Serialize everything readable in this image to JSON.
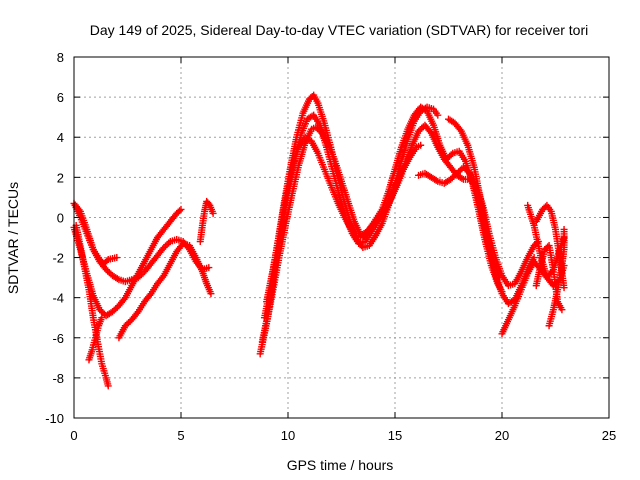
{
  "chart_data": {
    "type": "scatter",
    "title": "Day 149 of 2025, Sidereal Day-to-day VTEC variation (SDTVAR) for receiver tori",
    "xlabel": "GPS time / hours",
    "ylabel": "SDTVAR / TECUs",
    "xlim": [
      0,
      25
    ],
    "ylim": [
      -10,
      8
    ],
    "xticks": [
      "0",
      "5",
      "10",
      "15",
      "20",
      "25"
    ],
    "yticks": [
      "-10",
      "-8",
      "-6",
      "-4",
      "-2",
      "0",
      "2",
      "4",
      "6",
      "8"
    ],
    "xtick_values": [
      0,
      5,
      10,
      15,
      20,
      25
    ],
    "ytick_values": [
      -10,
      -8,
      -6,
      -4,
      -2,
      0,
      2,
      4,
      6,
      8
    ],
    "grid": true,
    "marker": "plus",
    "color": "#ff0000",
    "series": [
      {
        "values": [
          [
            0.0,
            0.7
          ],
          [
            0.3,
            0.3
          ],
          [
            0.6,
            -0.6
          ],
          [
            0.9,
            -1.6
          ],
          [
            1.2,
            -2.2
          ],
          [
            1.5,
            -2.6
          ],
          [
            1.8,
            -2.9
          ],
          [
            2.1,
            -3.1
          ],
          [
            2.4,
            -3.2
          ],
          [
            2.7,
            -3.1
          ],
          [
            3.0,
            -3.0
          ],
          [
            3.3,
            -2.7
          ],
          [
            3.6,
            -2.3
          ],
          [
            3.9,
            -1.9
          ],
          [
            4.2,
            -1.5
          ],
          [
            4.5,
            -1.2
          ],
          [
            4.8,
            -1.1
          ],
          [
            5.1,
            -1.2
          ],
          [
            5.4,
            -1.6
          ],
          [
            5.7,
            -2.2
          ],
          [
            6.0,
            -2.6
          ],
          [
            6.3,
            -2.5
          ]
        ]
      },
      {
        "values": [
          [
            0.05,
            0.6
          ],
          [
            0.3,
            0.0
          ],
          [
            0.6,
            -0.8
          ],
          [
            0.9,
            -1.6
          ],
          [
            1.2,
            -2.1
          ],
          [
            1.4,
            -2.3
          ],
          [
            1.6,
            -2.1
          ],
          [
            2.0,
            -2.0
          ]
        ]
      },
      {
        "values": [
          [
            0.0,
            -0.5
          ],
          [
            0.3,
            -1.6
          ],
          [
            0.6,
            -2.8
          ],
          [
            0.9,
            -3.9
          ],
          [
            1.2,
            -4.6
          ],
          [
            1.5,
            -4.9
          ],
          [
            1.8,
            -4.7
          ],
          [
            2.1,
            -4.4
          ],
          [
            2.4,
            -4.0
          ],
          [
            2.7,
            -3.4
          ],
          [
            3.0,
            -2.8
          ],
          [
            3.3,
            -2.2
          ],
          [
            3.6,
            -1.6
          ],
          [
            3.9,
            -1.0
          ],
          [
            4.2,
            -0.6
          ],
          [
            4.5,
            -0.2
          ],
          [
            4.8,
            0.2
          ],
          [
            5.0,
            0.4
          ]
        ]
      },
      {
        "values": [
          [
            0.1,
            -0.4
          ],
          [
            0.4,
            -2.0
          ],
          [
            0.7,
            -3.6
          ],
          [
            0.9,
            -5.0
          ],
          [
            1.1,
            -6.2
          ],
          [
            1.3,
            -7.3
          ],
          [
            1.5,
            -8.0
          ],
          [
            1.6,
            -8.4
          ]
        ]
      },
      {
        "values": [
          [
            0.7,
            -7.1
          ],
          [
            0.85,
            -6.6
          ],
          [
            1.0,
            -6.0
          ],
          [
            1.15,
            -5.4
          ],
          [
            1.3,
            -5.0
          ]
        ]
      },
      {
        "values": [
          [
            2.1,
            -6.0
          ],
          [
            2.4,
            -5.4
          ],
          [
            2.7,
            -5.1
          ],
          [
            3.0,
            -4.7
          ],
          [
            3.3,
            -4.2
          ],
          [
            3.6,
            -3.8
          ],
          [
            3.9,
            -3.3
          ],
          [
            4.2,
            -2.9
          ],
          [
            4.5,
            -2.3
          ],
          [
            4.8,
            -1.7
          ],
          [
            5.1,
            -1.3
          ],
          [
            5.4,
            -1.4
          ],
          [
            5.7,
            -2.0
          ],
          [
            6.0,
            -2.7
          ],
          [
            6.2,
            -3.3
          ],
          [
            6.4,
            -3.8
          ]
        ]
      },
      {
        "values": [
          [
            5.9,
            -1.2
          ],
          [
            6.0,
            -0.4
          ],
          [
            6.1,
            0.3
          ],
          [
            6.2,
            0.8
          ],
          [
            6.35,
            0.6
          ],
          [
            6.5,
            0.2
          ]
        ]
      },
      {
        "values": [
          [
            8.7,
            -6.8
          ],
          [
            9.0,
            -5.3
          ],
          [
            9.3,
            -3.6
          ],
          [
            9.6,
            -1.9
          ],
          [
            9.9,
            -0.3
          ],
          [
            10.2,
            1.2
          ],
          [
            10.5,
            2.6
          ],
          [
            10.8,
            3.7
          ],
          [
            11.1,
            4.4
          ],
          [
            11.3,
            4.5
          ],
          [
            11.6,
            4.2
          ],
          [
            11.9,
            3.6
          ],
          [
            12.2,
            2.8
          ],
          [
            12.5,
            1.8
          ],
          [
            12.8,
            0.8
          ],
          [
            13.1,
            -0.2
          ],
          [
            13.4,
            -0.9
          ],
          [
            13.7,
            -0.7
          ],
          [
            14.0,
            -0.3
          ],
          [
            14.3,
            0.0
          ],
          [
            14.6,
            0.4
          ],
          [
            14.9,
            1.2
          ],
          [
            15.2,
            2.0
          ],
          [
            15.5,
            2.8
          ],
          [
            15.8,
            3.6
          ],
          [
            16.1,
            4.3
          ],
          [
            16.4,
            4.6
          ],
          [
            16.7,
            4.2
          ],
          [
            17.0,
            3.5
          ],
          [
            17.3,
            2.9
          ],
          [
            17.6,
            2.5
          ],
          [
            17.9,
            2.1
          ],
          [
            18.2,
            1.9
          ],
          [
            18.5,
            1.9
          ],
          [
            18.8,
            1.6
          ],
          [
            19.1,
            0.6
          ],
          [
            19.4,
            -0.8
          ],
          [
            19.7,
            -2.0
          ],
          [
            20.0,
            -2.9
          ],
          [
            20.3,
            -3.4
          ],
          [
            20.6,
            -3.3
          ],
          [
            20.9,
            -2.7
          ],
          [
            21.2,
            -2.0
          ],
          [
            21.5,
            -1.4
          ],
          [
            21.7,
            -1.2
          ]
        ]
      },
      {
        "values": [
          [
            8.9,
            -5.0
          ],
          [
            9.2,
            -3.4
          ],
          [
            9.5,
            -1.4
          ],
          [
            9.8,
            0.6
          ],
          [
            10.1,
            2.4
          ],
          [
            10.4,
            4.0
          ],
          [
            10.7,
            5.2
          ],
          [
            11.0,
            5.9
          ],
          [
            11.2,
            6.1
          ],
          [
            11.4,
            5.7
          ],
          [
            11.7,
            4.7
          ],
          [
            12.0,
            3.5
          ],
          [
            12.3,
            2.2
          ],
          [
            12.6,
            0.9
          ],
          [
            12.9,
            -0.2
          ],
          [
            13.2,
            -0.9
          ],
          [
            13.5,
            -1.0
          ],
          [
            13.8,
            -0.6
          ],
          [
            14.1,
            -0.1
          ],
          [
            14.4,
            0.4
          ],
          [
            14.7,
            1.3
          ],
          [
            15.0,
            2.4
          ],
          [
            15.3,
            3.5
          ],
          [
            15.6,
            4.4
          ],
          [
            15.9,
            5.1
          ],
          [
            16.2,
            5.5
          ],
          [
            16.5,
            5.3
          ],
          [
            16.8,
            4.6
          ],
          [
            17.1,
            3.6
          ],
          [
            17.4,
            2.9
          ],
          [
            17.7,
            3.2
          ],
          [
            18.0,
            3.3
          ],
          [
            18.3,
            2.8
          ],
          [
            18.6,
            1.8
          ],
          [
            18.9,
            0.4
          ],
          [
            19.2,
            -1.1
          ],
          [
            19.5,
            -2.4
          ],
          [
            19.8,
            -3.3
          ],
          [
            20.0,
            -3.7
          ]
        ]
      },
      {
        "values": [
          [
            8.8,
            -6.2
          ],
          [
            9.1,
            -4.6
          ],
          [
            9.4,
            -2.6
          ],
          [
            9.7,
            -0.6
          ],
          [
            10.0,
            1.2
          ],
          [
            10.3,
            2.8
          ],
          [
            10.6,
            4.1
          ],
          [
            10.9,
            4.9
          ],
          [
            11.2,
            5.1
          ],
          [
            11.5,
            4.6
          ],
          [
            11.8,
            3.5
          ],
          [
            12.1,
            2.3
          ],
          [
            12.4,
            1.1
          ],
          [
            12.7,
            0.0
          ],
          [
            13.0,
            -0.8
          ],
          [
            13.3,
            -1.3
          ],
          [
            13.6,
            -1.2
          ],
          [
            13.9,
            -0.7
          ],
          [
            14.2,
            -0.2
          ],
          [
            14.5,
            0.3
          ],
          [
            14.8,
            0.9
          ],
          [
            15.1,
            1.6
          ],
          [
            15.4,
            2.4
          ],
          [
            15.7,
            3.0
          ],
          [
            16.0,
            3.5
          ],
          [
            16.2,
            3.6
          ]
        ]
      },
      {
        "values": [
          [
            9.0,
            -4.2
          ],
          [
            9.3,
            -2.6
          ],
          [
            9.6,
            -0.8
          ],
          [
            9.9,
            1.0
          ],
          [
            10.2,
            2.5
          ],
          [
            10.5,
            3.5
          ],
          [
            10.8,
            4.0
          ],
          [
            11.1,
            3.8
          ],
          [
            11.4,
            3.2
          ],
          [
            11.7,
            2.4
          ],
          [
            12.0,
            1.6
          ],
          [
            12.3,
            0.8
          ],
          [
            12.6,
            0.1
          ],
          [
            12.9,
            -0.5
          ],
          [
            13.2,
            -1.1
          ],
          [
            13.5,
            -1.5
          ],
          [
            13.8,
            -1.4
          ],
          [
            14.1,
            -0.9
          ],
          [
            14.4,
            -0.3
          ],
          [
            14.7,
            0.6
          ],
          [
            15.0,
            1.6
          ],
          [
            15.3,
            2.8
          ],
          [
            15.6,
            3.9
          ],
          [
            15.9,
            4.8
          ],
          [
            16.2,
            5.3
          ],
          [
            16.5,
            5.5
          ],
          [
            16.8,
            5.4
          ],
          [
            17.0,
            5.1
          ]
        ]
      },
      {
        "values": [
          [
            16.1,
            2.1
          ],
          [
            16.4,
            2.2
          ],
          [
            16.7,
            2.0
          ],
          [
            17.0,
            1.8
          ],
          [
            17.3,
            1.7
          ],
          [
            17.6,
            1.9
          ],
          [
            17.9,
            2.2
          ],
          [
            18.2,
            2.5
          ],
          [
            18.5,
            2.2
          ],
          [
            18.8,
            1.2
          ],
          [
            19.1,
            -0.2
          ],
          [
            19.4,
            -1.6
          ],
          [
            19.7,
            -2.9
          ],
          [
            20.0,
            -3.8
          ],
          [
            20.3,
            -4.3
          ],
          [
            20.6,
            -4.1
          ],
          [
            20.9,
            -3.4
          ],
          [
            21.2,
            -2.6
          ],
          [
            21.5,
            -2.0
          ]
        ]
      },
      {
        "values": [
          [
            17.5,
            4.9
          ],
          [
            17.8,
            4.7
          ],
          [
            18.1,
            4.3
          ],
          [
            18.4,
            3.6
          ],
          [
            18.7,
            2.5
          ],
          [
            19.0,
            0.9
          ],
          [
            19.3,
            -0.7
          ],
          [
            19.6,
            -2.1
          ],
          [
            19.9,
            -3.0
          ]
        ]
      },
      {
        "values": [
          [
            20.0,
            -5.8
          ],
          [
            20.3,
            -5.1
          ],
          [
            20.6,
            -4.4
          ],
          [
            20.9,
            -3.6
          ],
          [
            21.2,
            -2.8
          ],
          [
            21.5,
            -2.2
          ],
          [
            21.8,
            -2.6
          ],
          [
            22.1,
            -3.0
          ],
          [
            22.4,
            -2.6
          ],
          [
            22.7,
            -1.6
          ],
          [
            22.9,
            -1.0
          ]
        ]
      },
      {
        "values": [
          [
            21.2,
            0.6
          ],
          [
            21.5,
            -0.4
          ],
          [
            21.8,
            -1.9
          ],
          [
            22.1,
            -3.0
          ],
          [
            22.4,
            -3.4
          ],
          [
            22.7,
            -3.1
          ],
          [
            22.9,
            -2.4
          ]
        ]
      },
      {
        "values": [
          [
            21.6,
            -0.2
          ],
          [
            21.9,
            0.4
          ],
          [
            22.1,
            0.6
          ],
          [
            22.3,
            0.3
          ],
          [
            22.5,
            -0.6
          ],
          [
            22.7,
            -2.0
          ],
          [
            22.9,
            -3.5
          ]
        ]
      },
      {
        "values": [
          [
            21.6,
            -3.4
          ],
          [
            21.8,
            -2.4
          ],
          [
            22.0,
            -1.6
          ],
          [
            22.2,
            -1.4
          ],
          [
            22.4,
            -2.6
          ],
          [
            22.6,
            -4.2
          ],
          [
            22.8,
            -4.6
          ]
        ]
      },
      {
        "values": [
          [
            22.2,
            -5.4
          ],
          [
            22.4,
            -4.6
          ],
          [
            22.6,
            -3.6
          ],
          [
            22.8,
            -2.4
          ],
          [
            22.9,
            -1.6
          ],
          [
            22.9,
            -0.6
          ]
        ]
      }
    ]
  }
}
